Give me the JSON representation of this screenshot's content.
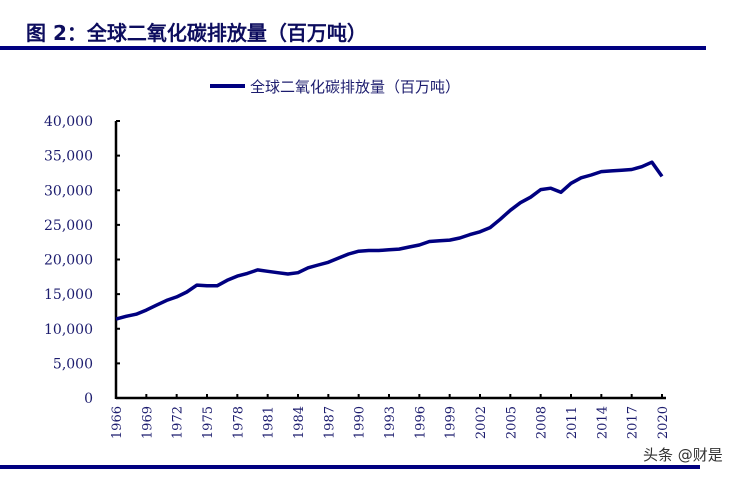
{
  "header": {
    "title": "图 2：全球二氧化碳排放量（百万吨）"
  },
  "watermark": "头条 @财是",
  "colors": {
    "series": "#000080",
    "rule": "#000080",
    "text": "#1c1c6e"
  },
  "chart_data": {
    "type": "line",
    "title": "",
    "xlabel": "",
    "ylabel": "",
    "legend": {
      "position": "top-center",
      "entries": [
        "全球二氧化碳排放量（百万吨）"
      ]
    },
    "grid": false,
    "ylim": [
      0,
      40000
    ],
    "yticks": [
      "0",
      "5,000",
      "10,000",
      "15,000",
      "20,000",
      "25,000",
      "30,000",
      "35,000",
      "40,000"
    ],
    "ytick_values": [
      0,
      5000,
      10000,
      15000,
      20000,
      25000,
      30000,
      35000,
      40000
    ],
    "xticks": [
      "1966",
      "1969",
      "1972",
      "1975",
      "1978",
      "1981",
      "1984",
      "1987",
      "1990",
      "1993",
      "1996",
      "1999",
      "2002",
      "2005",
      "2008",
      "2011",
      "2014",
      "2017",
      "2020"
    ],
    "xlim": [
      1966,
      2020
    ],
    "series": [
      {
        "name": "全球二氧化碳排放量（百万吨）",
        "x": [
          1966,
          1967,
          1968,
          1969,
          1970,
          1971,
          1972,
          1973,
          1974,
          1975,
          1976,
          1977,
          1978,
          1979,
          1980,
          1981,
          1982,
          1983,
          1984,
          1985,
          1986,
          1987,
          1988,
          1989,
          1990,
          1991,
          1992,
          1993,
          1994,
          1995,
          1996,
          1997,
          1998,
          1999,
          2000,
          2001,
          2002,
          2003,
          2004,
          2005,
          2006,
          2007,
          2008,
          2009,
          2010,
          2011,
          2012,
          2013,
          2014,
          2015,
          2016,
          2017,
          2018,
          2019,
          2020
        ],
        "values": [
          11400,
          11800,
          12100,
          12700,
          13400,
          14100,
          14600,
          15300,
          16300,
          16200,
          16200,
          17000,
          17600,
          18000,
          18500,
          18300,
          18100,
          17900,
          18100,
          18800,
          19200,
          19600,
          20200,
          20800,
          21200,
          21300,
          21300,
          21400,
          21500,
          21800,
          22100,
          22600,
          22700,
          22800,
          23100,
          23600,
          24000,
          24600,
          25800,
          27100,
          28200,
          29000,
          30100,
          30300,
          29700,
          31000,
          31800,
          32200,
          32700,
          32800,
          32900,
          33000,
          33400,
          34050,
          32000
        ]
      }
    ]
  }
}
